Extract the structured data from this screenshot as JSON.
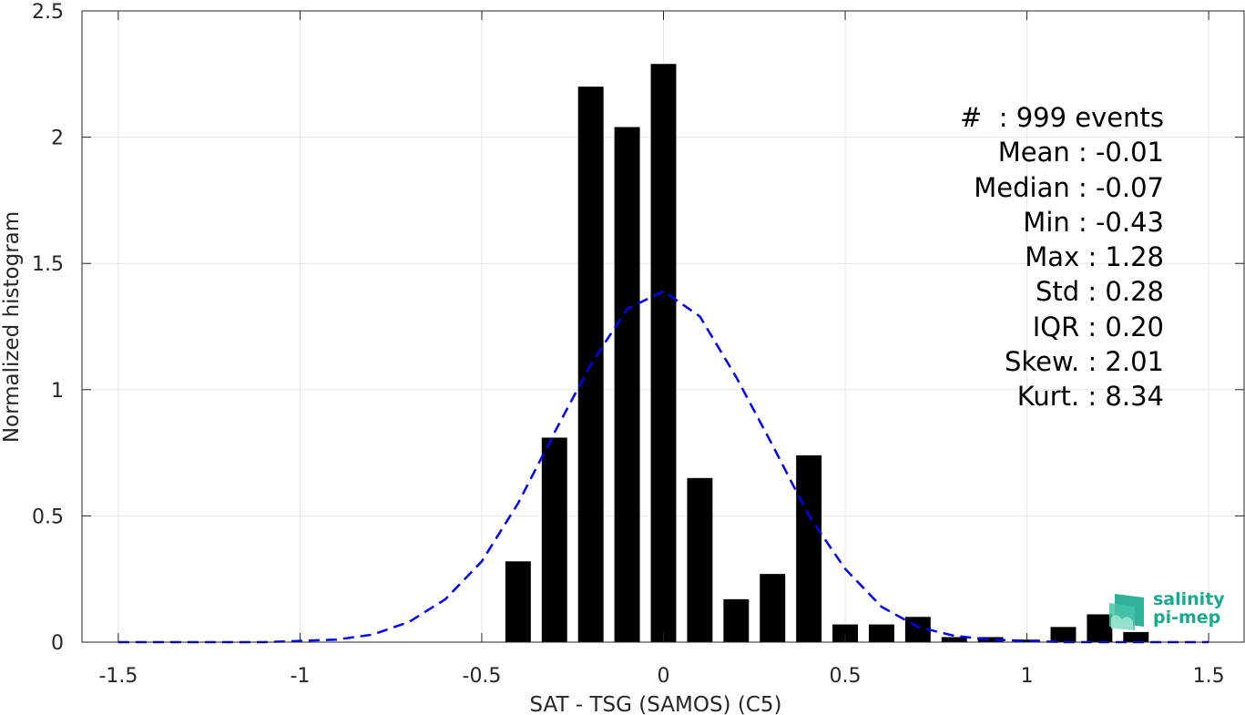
{
  "chart_data": {
    "type": "bar",
    "xlabel": "SAT - TSG (SAMOS) (C5)",
    "ylabel": "Normalized histogram",
    "xlim": [
      -1.6,
      1.6
    ],
    "ylim": [
      0,
      2.5
    ],
    "xticks": [
      -1.5,
      -1,
      -0.5,
      0,
      0.5,
      1,
      1.5
    ],
    "xtick_labels": [
      "-1.5",
      "-1",
      "-0.5",
      "0",
      "0.5",
      "1",
      "1.5"
    ],
    "yticks": [
      0,
      0.5,
      1,
      1.5,
      2,
      2.5
    ],
    "ytick_labels": [
      "0",
      "0.5",
      "1",
      "1.5",
      "2",
      "2.5"
    ],
    "grid": true,
    "bar_width": 0.07,
    "x": [
      -0.4,
      -0.3,
      -0.2,
      -0.1,
      0.0,
      0.1,
      0.2,
      0.3,
      0.4,
      0.5,
      0.6,
      0.7,
      0.8,
      0.9,
      1.0,
      1.1,
      1.2,
      1.3
    ],
    "values": [
      0.32,
      0.81,
      2.2,
      2.04,
      2.29,
      0.65,
      0.17,
      0.27,
      0.74,
      0.07,
      0.07,
      0.1,
      0.02,
      0.02,
      0.01,
      0.06,
      0.11,
      0.04
    ],
    "fit": {
      "style": "dashed",
      "color": "#0000ff",
      "x": [
        -1.5,
        -1.4,
        -1.3,
        -1.2,
        -1.1,
        -1.0,
        -0.9,
        -0.8,
        -0.7,
        -0.6,
        -0.5,
        -0.4,
        -0.3,
        -0.2,
        -0.1,
        0.0,
        0.1,
        0.2,
        0.3,
        0.4,
        0.5,
        0.6,
        0.7,
        0.8,
        0.9,
        1.0,
        1.1,
        1.2,
        1.3,
        1.4,
        1.5
      ],
      "y": [
        0.0,
        0.0,
        0.0,
        0.0,
        0.0,
        0.005,
        0.01,
        0.03,
        0.08,
        0.17,
        0.32,
        0.55,
        0.83,
        1.1,
        1.32,
        1.39,
        1.29,
        1.05,
        0.78,
        0.5,
        0.29,
        0.14,
        0.06,
        0.025,
        0.01,
        0.005,
        0.0,
        0.0,
        0.0,
        0.0,
        0.0
      ]
    },
    "bar_color": "#000000"
  },
  "stats": [
    "#  : 999 events",
    "Mean : -0.01",
    "Median : -0.07",
    "Min : -0.43",
    "Max : 1.28",
    "Std : 0.28",
    "IQR : 0.20",
    "Skew. : 2.01",
    "Kurt. : 8.34"
  ],
  "logo": {
    "line1": "salinity",
    "line2": "pi-mep",
    "color": "#1aa98f"
  }
}
